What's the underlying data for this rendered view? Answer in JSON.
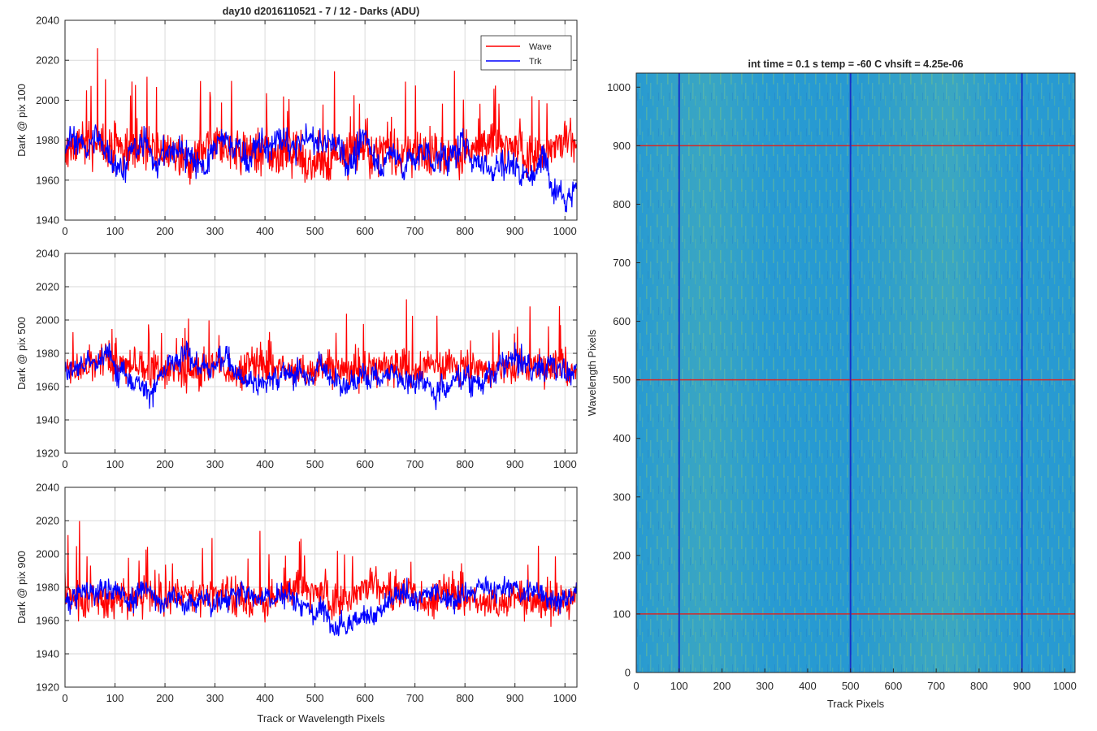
{
  "figure_title": "day10 d2016110521 - 7 / 12 - Darks (ADU)",
  "colors": {
    "wave": "#ff0000",
    "trk": "#0000ff",
    "heatmap_base": "#2a9ed3",
    "heatmap_hot": "#8fcf6b",
    "marker_wave": "#d22a2a",
    "marker_trk": "#1530c8",
    "grid": "#dadada",
    "axis": "#262626"
  },
  "legend": {
    "position": "top-right",
    "entries": [
      "Wave",
      "Trk"
    ]
  },
  "chart_data": [
    {
      "type": "line",
      "ylabel": "Dark @ pix 100",
      "xlabel": "",
      "xlim": [
        0,
        1024
      ],
      "ylim": [
        1940,
        2040
      ],
      "xticks": [
        "0",
        "100",
        "200",
        "300",
        "400",
        "500",
        "600",
        "700",
        "800",
        "900",
        "1000"
      ],
      "yticks": [
        "1940",
        "1960",
        "1980",
        "2000",
        "2020",
        "2040"
      ],
      "grid": true,
      "series": [
        {
          "name": "Wave",
          "baseline": 1975,
          "noise": 10,
          "wander": 3,
          "points": 1024
        },
        {
          "name": "Trk",
          "baseline": 1973,
          "noise": 6,
          "wander": 9,
          "points": 1024
        }
      ]
    },
    {
      "type": "line",
      "ylabel": "Dark @ pix 500",
      "xlabel": "",
      "xlim": [
        0,
        1024
      ],
      "ylim": [
        1920,
        2040
      ],
      "xticks": [
        "0",
        "100",
        "200",
        "300",
        "400",
        "500",
        "600",
        "700",
        "800",
        "900",
        "1000"
      ],
      "yticks": [
        "1920",
        "1940",
        "1960",
        "1980",
        "2000",
        "2020",
        "2040"
      ],
      "grid": true,
      "series": [
        {
          "name": "Wave",
          "baseline": 1973,
          "noise": 10,
          "wander": 3,
          "points": 1024
        },
        {
          "name": "Trk",
          "baseline": 1973,
          "noise": 6,
          "wander": 9,
          "points": 1024
        }
      ]
    },
    {
      "type": "line",
      "ylabel": "Dark @ pix 900",
      "xlabel": "Track or Wavelength Pixels",
      "xlim": [
        0,
        1024
      ],
      "ylim": [
        1920,
        2040
      ],
      "xticks": [
        "0",
        "100",
        "200",
        "300",
        "400",
        "500",
        "600",
        "700",
        "800",
        "900",
        "1000"
      ],
      "yticks": [
        "1920",
        "1940",
        "1960",
        "1980",
        "2000",
        "2020",
        "2040"
      ],
      "grid": true,
      "series": [
        {
          "name": "Wave",
          "baseline": 1975,
          "noise": 10,
          "wander": 4,
          "points": 1024
        },
        {
          "name": "Trk",
          "baseline": 1973,
          "noise": 6,
          "wander": 6,
          "points": 1024
        }
      ]
    },
    {
      "type": "heatmap",
      "title": "int time = 0.1 s   temp = -60 C   vhsift = 4.25e-06",
      "xlabel": "Track Pixels",
      "ylabel": "Wavelength Pixels",
      "xlim": [
        0,
        1024
      ],
      "ylim": [
        0,
        1024
      ],
      "xticks": [
        "0",
        "100",
        "200",
        "300",
        "400",
        "500",
        "600",
        "700",
        "800",
        "900",
        "1000"
      ],
      "yticks": [
        "0",
        "100",
        "200",
        "300",
        "400",
        "500",
        "600",
        "700",
        "800",
        "900",
        "1000"
      ],
      "vertical_markers": [
        100,
        500,
        900
      ],
      "horizontal_markers": [
        100,
        500,
        900
      ]
    }
  ]
}
